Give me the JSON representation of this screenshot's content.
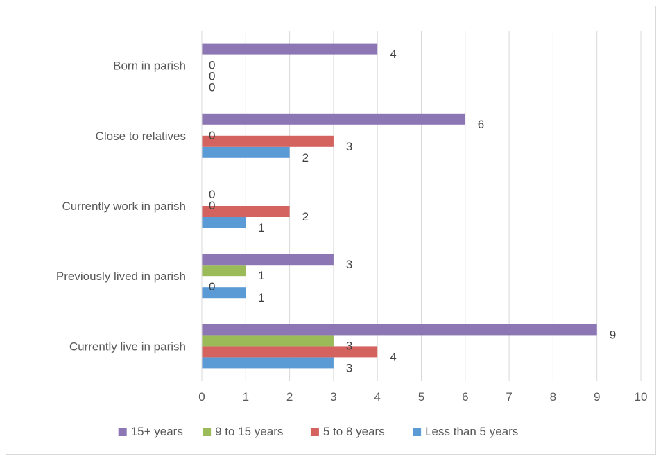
{
  "chart_data": {
    "type": "bar",
    "orientation": "horizontal",
    "title": "",
    "xlabel": "",
    "ylabel": "",
    "categories": [
      "Currently live in parish",
      "Previously lived in parish",
      "Currently work in parish",
      "Close to relatives",
      "Born in parish"
    ],
    "series": [
      {
        "name": "Less than 5 years",
        "color": "#5b9bd5",
        "values": [
          3,
          1,
          1,
          2,
          0
        ]
      },
      {
        "name": "5 to 8 years",
        "color": "#d4635f",
        "values": [
          4,
          0,
          2,
          3,
          0
        ]
      },
      {
        "name": "9 to 15 years",
        "color": "#9bbb59",
        "values": [
          3,
          1,
          0,
          0,
          0
        ]
      },
      {
        "name": "15+ years",
        "color": "#8c76b4",
        "values": [
          9,
          3,
          0,
          6,
          4
        ]
      }
    ],
    "xlim": [
      0,
      10
    ],
    "xticks": [
      "0",
      "1",
      "2",
      "3",
      "4",
      "5",
      "6",
      "7",
      "8",
      "9",
      "10"
    ],
    "grid": true,
    "data_labels": true,
    "legend_position": "bottom",
    "legend_order": [
      "15+ years",
      "9 to 15 years",
      "5 to 8 years",
      "Less than 5 years"
    ]
  }
}
